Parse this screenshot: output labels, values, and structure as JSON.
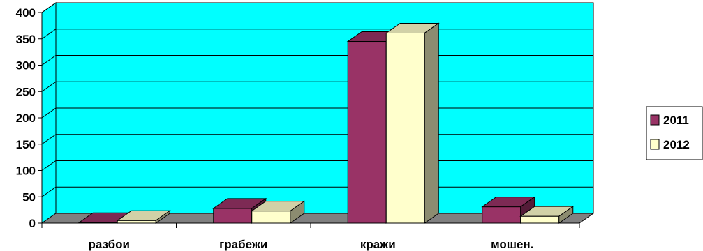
{
  "chart_data": {
    "type": "bar",
    "categories": [
      "разбои",
      "грабежи",
      "кражи",
      "мошен."
    ],
    "series": [
      {
        "name": "2011",
        "values": [
          1,
          28,
          345,
          31
        ],
        "color": "#993366"
      },
      {
        "name": "2012",
        "values": [
          5,
          23,
          361,
          13
        ],
        "color": "#FFFFCC"
      }
    ],
    "yticks": [
      0,
      50,
      100,
      150,
      200,
      250,
      300,
      350,
      400
    ],
    "ylim": [
      0,
      400
    ],
    "grid": true,
    "legend_position": "right",
    "wall_color": "#00FFFF",
    "floor_color": "#808080",
    "title": "",
    "xlabel": "",
    "ylabel": ""
  }
}
